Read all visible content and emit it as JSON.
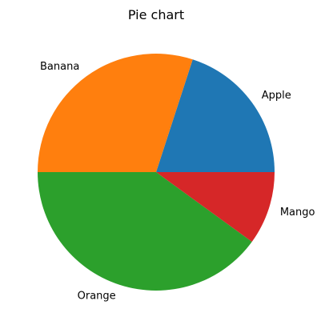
{
  "chart_data": {
    "type": "pie",
    "title": "Pie chart",
    "start_angle_deg": 0,
    "direction": "counterclockwise",
    "slices": [
      {
        "label": "Apple",
        "value": 20,
        "color": "#1f77b4"
      },
      {
        "label": "Banana",
        "value": 30,
        "color": "#ff7f0e"
      },
      {
        "label": "Orange",
        "value": 40,
        "color": "#2ca02c"
      },
      {
        "label": "Mango",
        "value": 10,
        "color": "#d62728"
      }
    ]
  }
}
